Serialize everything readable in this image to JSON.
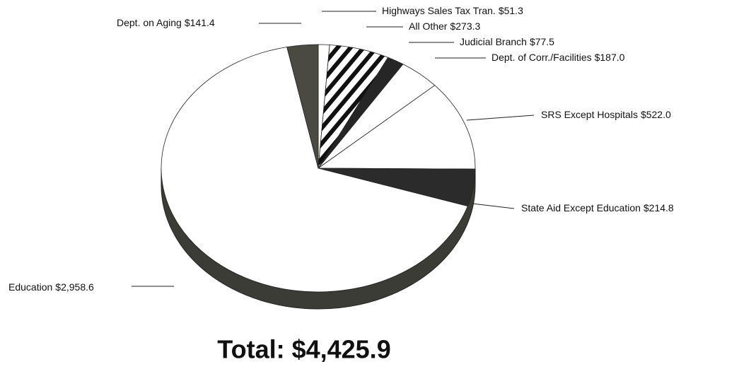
{
  "chart_data": {
    "type": "pie",
    "categories": [
      "Highways Sales Tax Tran.",
      "All Other",
      "Judicial Branch",
      "Dept. of Corr./Facilities",
      "SRS Except Hospitals",
      "State Aid Except Education",
      "Education",
      "Dept. on Aging"
    ],
    "values": [
      51.3,
      273.3,
      77.5,
      187.0,
      522.0,
      214.8,
      2958.6,
      141.4
    ],
    "value_labels": [
      "$51.3",
      "$273.3",
      "$77.5",
      "$187.0",
      "$522.0",
      "$214.8",
      "$2,958.6",
      "$141.4"
    ],
    "colors": [
      "#ffffff",
      "url(#hatch)",
      "#262626",
      "#ffffff",
      "#ffffff",
      "#2b2b2b",
      "#ffffff",
      "#4a4a42"
    ],
    "total": "Total: $4,425.9"
  }
}
